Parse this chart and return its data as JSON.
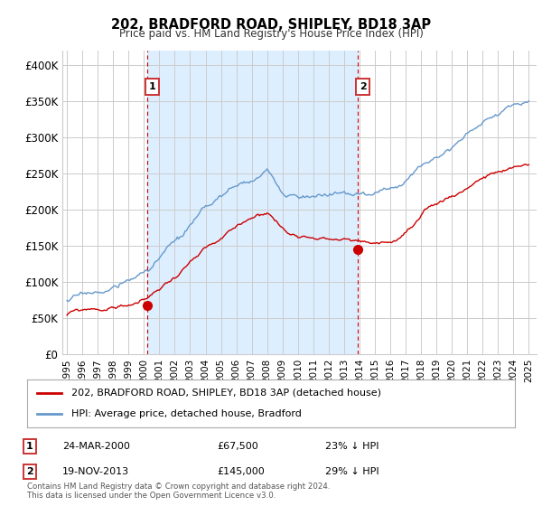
{
  "title": "202, BRADFORD ROAD, SHIPLEY, BD18 3AP",
  "subtitle": "Price paid vs. HM Land Registry's House Price Index (HPI)",
  "legend_line1": "202, BRADFORD ROAD, SHIPLEY, BD18 3AP (detached house)",
  "legend_line2": "HPI: Average price, detached house, Bradford",
  "footnote": "Contains HM Land Registry data © Crown copyright and database right 2024.\nThis data is licensed under the Open Government Licence v3.0.",
  "annotation1": {
    "label": "1",
    "date": "24-MAR-2000",
    "price": "£67,500",
    "pct": "23% ↓ HPI"
  },
  "annotation2": {
    "label": "2",
    "date": "19-NOV-2013",
    "price": "£145,000",
    "pct": "29% ↓ HPI"
  },
  "sale1_x": 2000.21,
  "sale1_y": 67500,
  "sale2_x": 2013.88,
  "sale2_y": 145000,
  "vline1_x": 2000.21,
  "vline2_x": 2013.88,
  "shade_color": "#ddeeff",
  "ylim": [
    0,
    420000
  ],
  "xlim_start": 1994.7,
  "xlim_end": 2025.5,
  "red_color": "#cc0000",
  "blue_color": "#6699cc",
  "background_color": "#ffffff",
  "grid_color": "#cccccc",
  "yticks": [
    0,
    50000,
    100000,
    150000,
    200000,
    250000,
    300000,
    350000,
    400000
  ],
  "ytick_labels": [
    "£0",
    "£50K",
    "£100K",
    "£150K",
    "£200K",
    "£250K",
    "£300K",
    "£350K",
    "£400K"
  ],
  "xtick_years": [
    1995,
    1996,
    1997,
    1998,
    1999,
    2000,
    2001,
    2002,
    2003,
    2004,
    2005,
    2006,
    2007,
    2008,
    2009,
    2010,
    2011,
    2012,
    2013,
    2014,
    2015,
    2016,
    2017,
    2018,
    2019,
    2020,
    2021,
    2022,
    2023,
    2024,
    2025
  ]
}
